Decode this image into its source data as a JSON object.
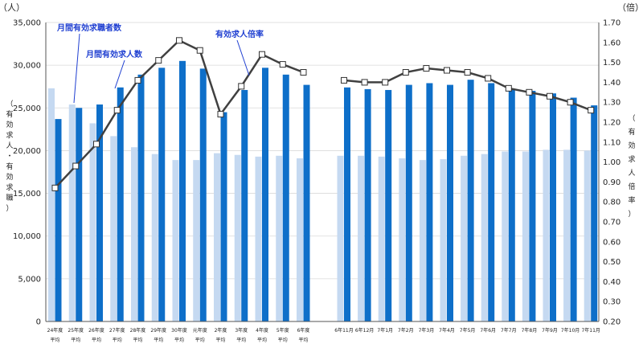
{
  "chart_data": {
    "type": "bar",
    "left_unit": "（人）",
    "right_unit": "（倍）",
    "left_axis_label": [
      "（",
      "有",
      "効",
      "求",
      "人",
      "・",
      "有",
      "効",
      "求",
      "職",
      "）"
    ],
    "right_axis_label": [
      "（",
      "有",
      "効",
      "求",
      "人",
      "倍",
      "率",
      "）"
    ],
    "ylim_left": [
      0,
      35000
    ],
    "ylim_right": [
      0.2,
      1.7
    ],
    "left_ticks": [
      "0",
      "5,000",
      "10,000",
      "15,000",
      "20,000",
      "25,000",
      "30,000",
      "35,000"
    ],
    "right_ticks": [
      "0.20",
      "0.30",
      "0.40",
      "0.50",
      "0.60",
      "0.70",
      "0.80",
      "0.90",
      "1.00",
      "1.10",
      "1.20",
      "1.30",
      "1.40",
      "1.50",
      "1.60",
      "1.70"
    ],
    "group1_categories": [
      [
        "24年度",
        "平均"
      ],
      [
        "25年度",
        "平均"
      ],
      [
        "26年度",
        "平均"
      ],
      [
        "27年度",
        "平均"
      ],
      [
        "28年度",
        "平均"
      ],
      [
        "29年度",
        "平均"
      ],
      [
        "30年度",
        "平均"
      ],
      [
        "元年度",
        "平均"
      ],
      [
        "2年度",
        "平均"
      ],
      [
        "3年度",
        "平均"
      ],
      [
        "4年度",
        "平均"
      ],
      [
        "5年度",
        "平均"
      ],
      [
        "6年度",
        "平均"
      ]
    ],
    "group2_categories": [
      "6年11月",
      "6年12月",
      "7年1月",
      "7年2月",
      "7年3月",
      "7年4月",
      "7年5月",
      "7年6月",
      "7年7月",
      "7年8月",
      "7年9月",
      "7年10月",
      "7年11月"
    ],
    "series": [
      {
        "name": "月間有効求職者数",
        "color": "#c5d9f1",
        "group1": [
          27300,
          25400,
          23200,
          21700,
          20400,
          19600,
          18900,
          18900,
          19700,
          19500,
          19300,
          19400,
          19100
        ],
        "group2": [
          19400,
          19400,
          19300,
          19100,
          18900,
          19000,
          19400,
          19600,
          19900,
          19900,
          20100,
          20100,
          20000
        ]
      },
      {
        "name": "月間有効求人数",
        "color": "#0e6fc9",
        "group1": [
          23700,
          25000,
          25400,
          27400,
          28900,
          29700,
          30500,
          29600,
          24500,
          27100,
          29700,
          28900,
          27700
        ],
        "group2": [
          27400,
          27200,
          27100,
          27700,
          27900,
          27700,
          28300,
          27900,
          27200,
          27000,
          26700,
          26200,
          25300
        ]
      },
      {
        "name": "有効求人倍率",
        "color": "#404040",
        "group1": [
          0.87,
          0.98,
          1.09,
          1.26,
          1.41,
          1.51,
          1.61,
          1.56,
          1.24,
          1.38,
          1.54,
          1.49,
          1.45
        ],
        "group2": [
          1.41,
          1.4,
          1.4,
          1.45,
          1.47,
          1.46,
          1.45,
          1.42,
          1.37,
          1.35,
          1.33,
          1.3,
          1.26
        ]
      }
    ],
    "annotations": [
      "月間有効求職者数",
      "月間有効求人数",
      "有効求人倍率"
    ]
  }
}
